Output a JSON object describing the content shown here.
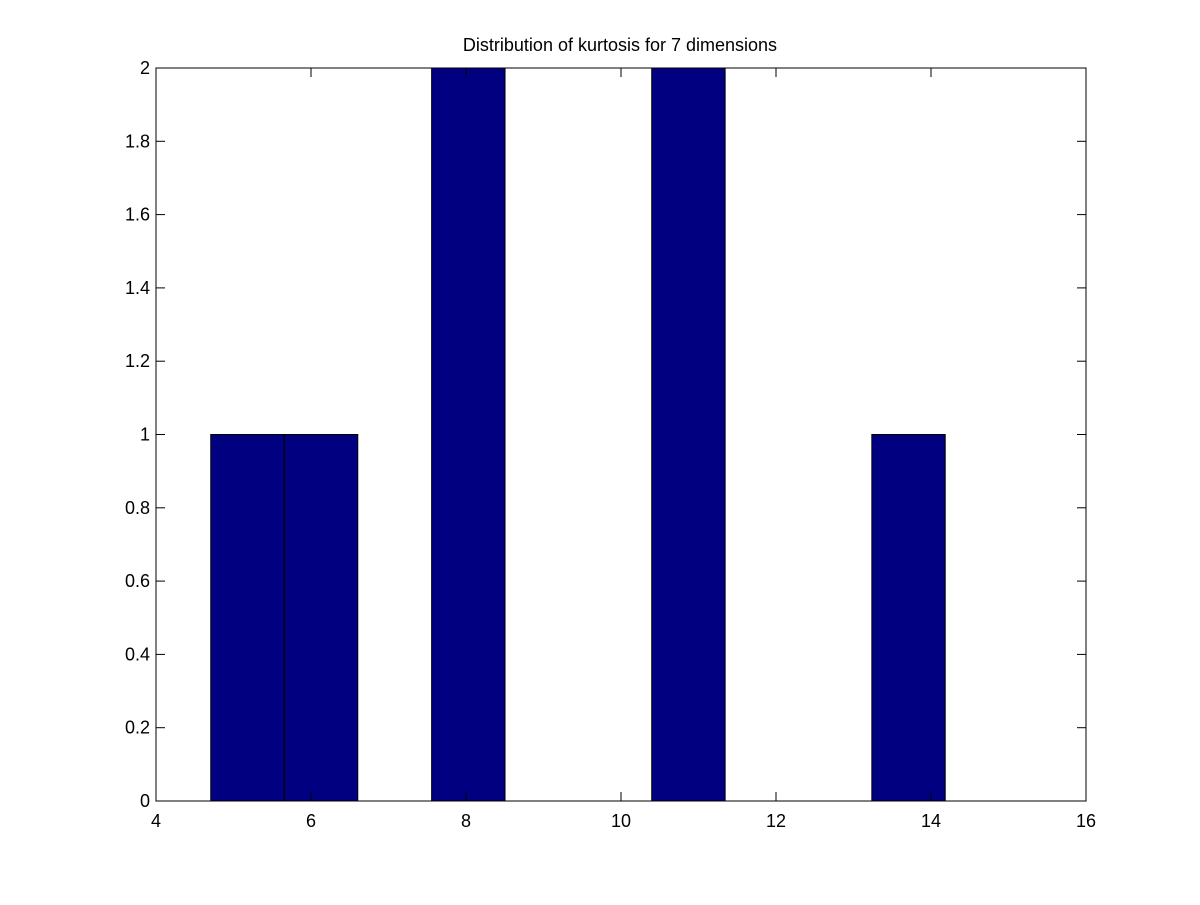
{
  "chart_data": {
    "type": "bar",
    "title": "Distribution of kurtosis for 7 dimensions",
    "xlabel": "",
    "ylabel": "",
    "xlim": [
      4,
      16
    ],
    "ylim": [
      0,
      2
    ],
    "x_ticks": [
      "4",
      "6",
      "8",
      "10",
      "12",
      "14",
      "16"
    ],
    "y_ticks": [
      "0",
      "0.2",
      "0.4",
      "0.6",
      "0.8",
      "1",
      "1.2",
      "1.4",
      "1.6",
      "1.8",
      "2"
    ],
    "grid": false,
    "bin_centers": [
      5.18,
      6.13,
      8.03,
      10.87,
      13.71
    ],
    "bin_width": 0.947,
    "values": [
      1,
      1,
      2,
      2,
      1
    ],
    "bar_color": "#000080",
    "edge_color": "#000000"
  }
}
